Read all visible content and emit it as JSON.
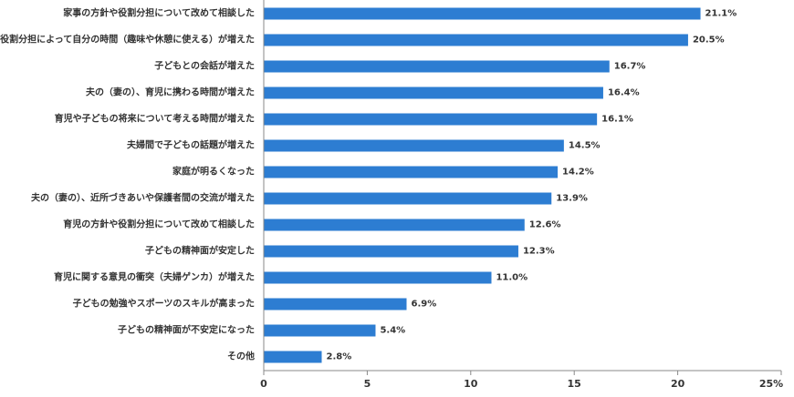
{
  "colors": {
    "bar": "#2d7dd2",
    "axis": "#888888",
    "text": "#333333"
  },
  "chart_data": {
    "type": "bar",
    "orientation": "horizontal",
    "categories": [
      "家事の方針や役割分担について改めて相談した",
      "役割分担によって自分の時間（趣味や休憩に使える）が増えた",
      "子どもとの会話が増えた",
      "夫の（妻の）、育児に携わる時間が増えた",
      "育児や子どもの将来について考える時間が増えた",
      "夫婦間で子どもの話題が増えた",
      "家庭が明るくなった",
      "夫の（妻の）、近所づきあいや保護者間の交流が増えた",
      "育児の方針や役割分担について改めて相談した",
      "子どもの精神面が安定した",
      "育児に関する意見の衝突（夫婦ゲンカ）が増えた",
      "子どもの勉強やスポーツのスキルが高まった",
      "子どもの精神面が不安定になった",
      "その他"
    ],
    "values": [
      21.1,
      20.5,
      16.7,
      16.4,
      16.1,
      14.5,
      14.2,
      13.9,
      12.6,
      12.3,
      11.0,
      6.9,
      5.4,
      2.8
    ],
    "value_labels": [
      "21.1%",
      "20.5%",
      "16.7%",
      "16.4%",
      "16.1%",
      "14.5%",
      "14.2%",
      "13.9%",
      "12.6%",
      "12.3%",
      "11.0%",
      "6.9%",
      "5.4%",
      "2.8%"
    ],
    "xlim": [
      0,
      25
    ],
    "x_ticks": [
      0,
      5,
      10,
      15,
      20,
      25
    ],
    "x_tick_labels": [
      "0",
      "5",
      "10",
      "15",
      "20",
      "25%"
    ],
    "grid": false,
    "legend": "none"
  }
}
